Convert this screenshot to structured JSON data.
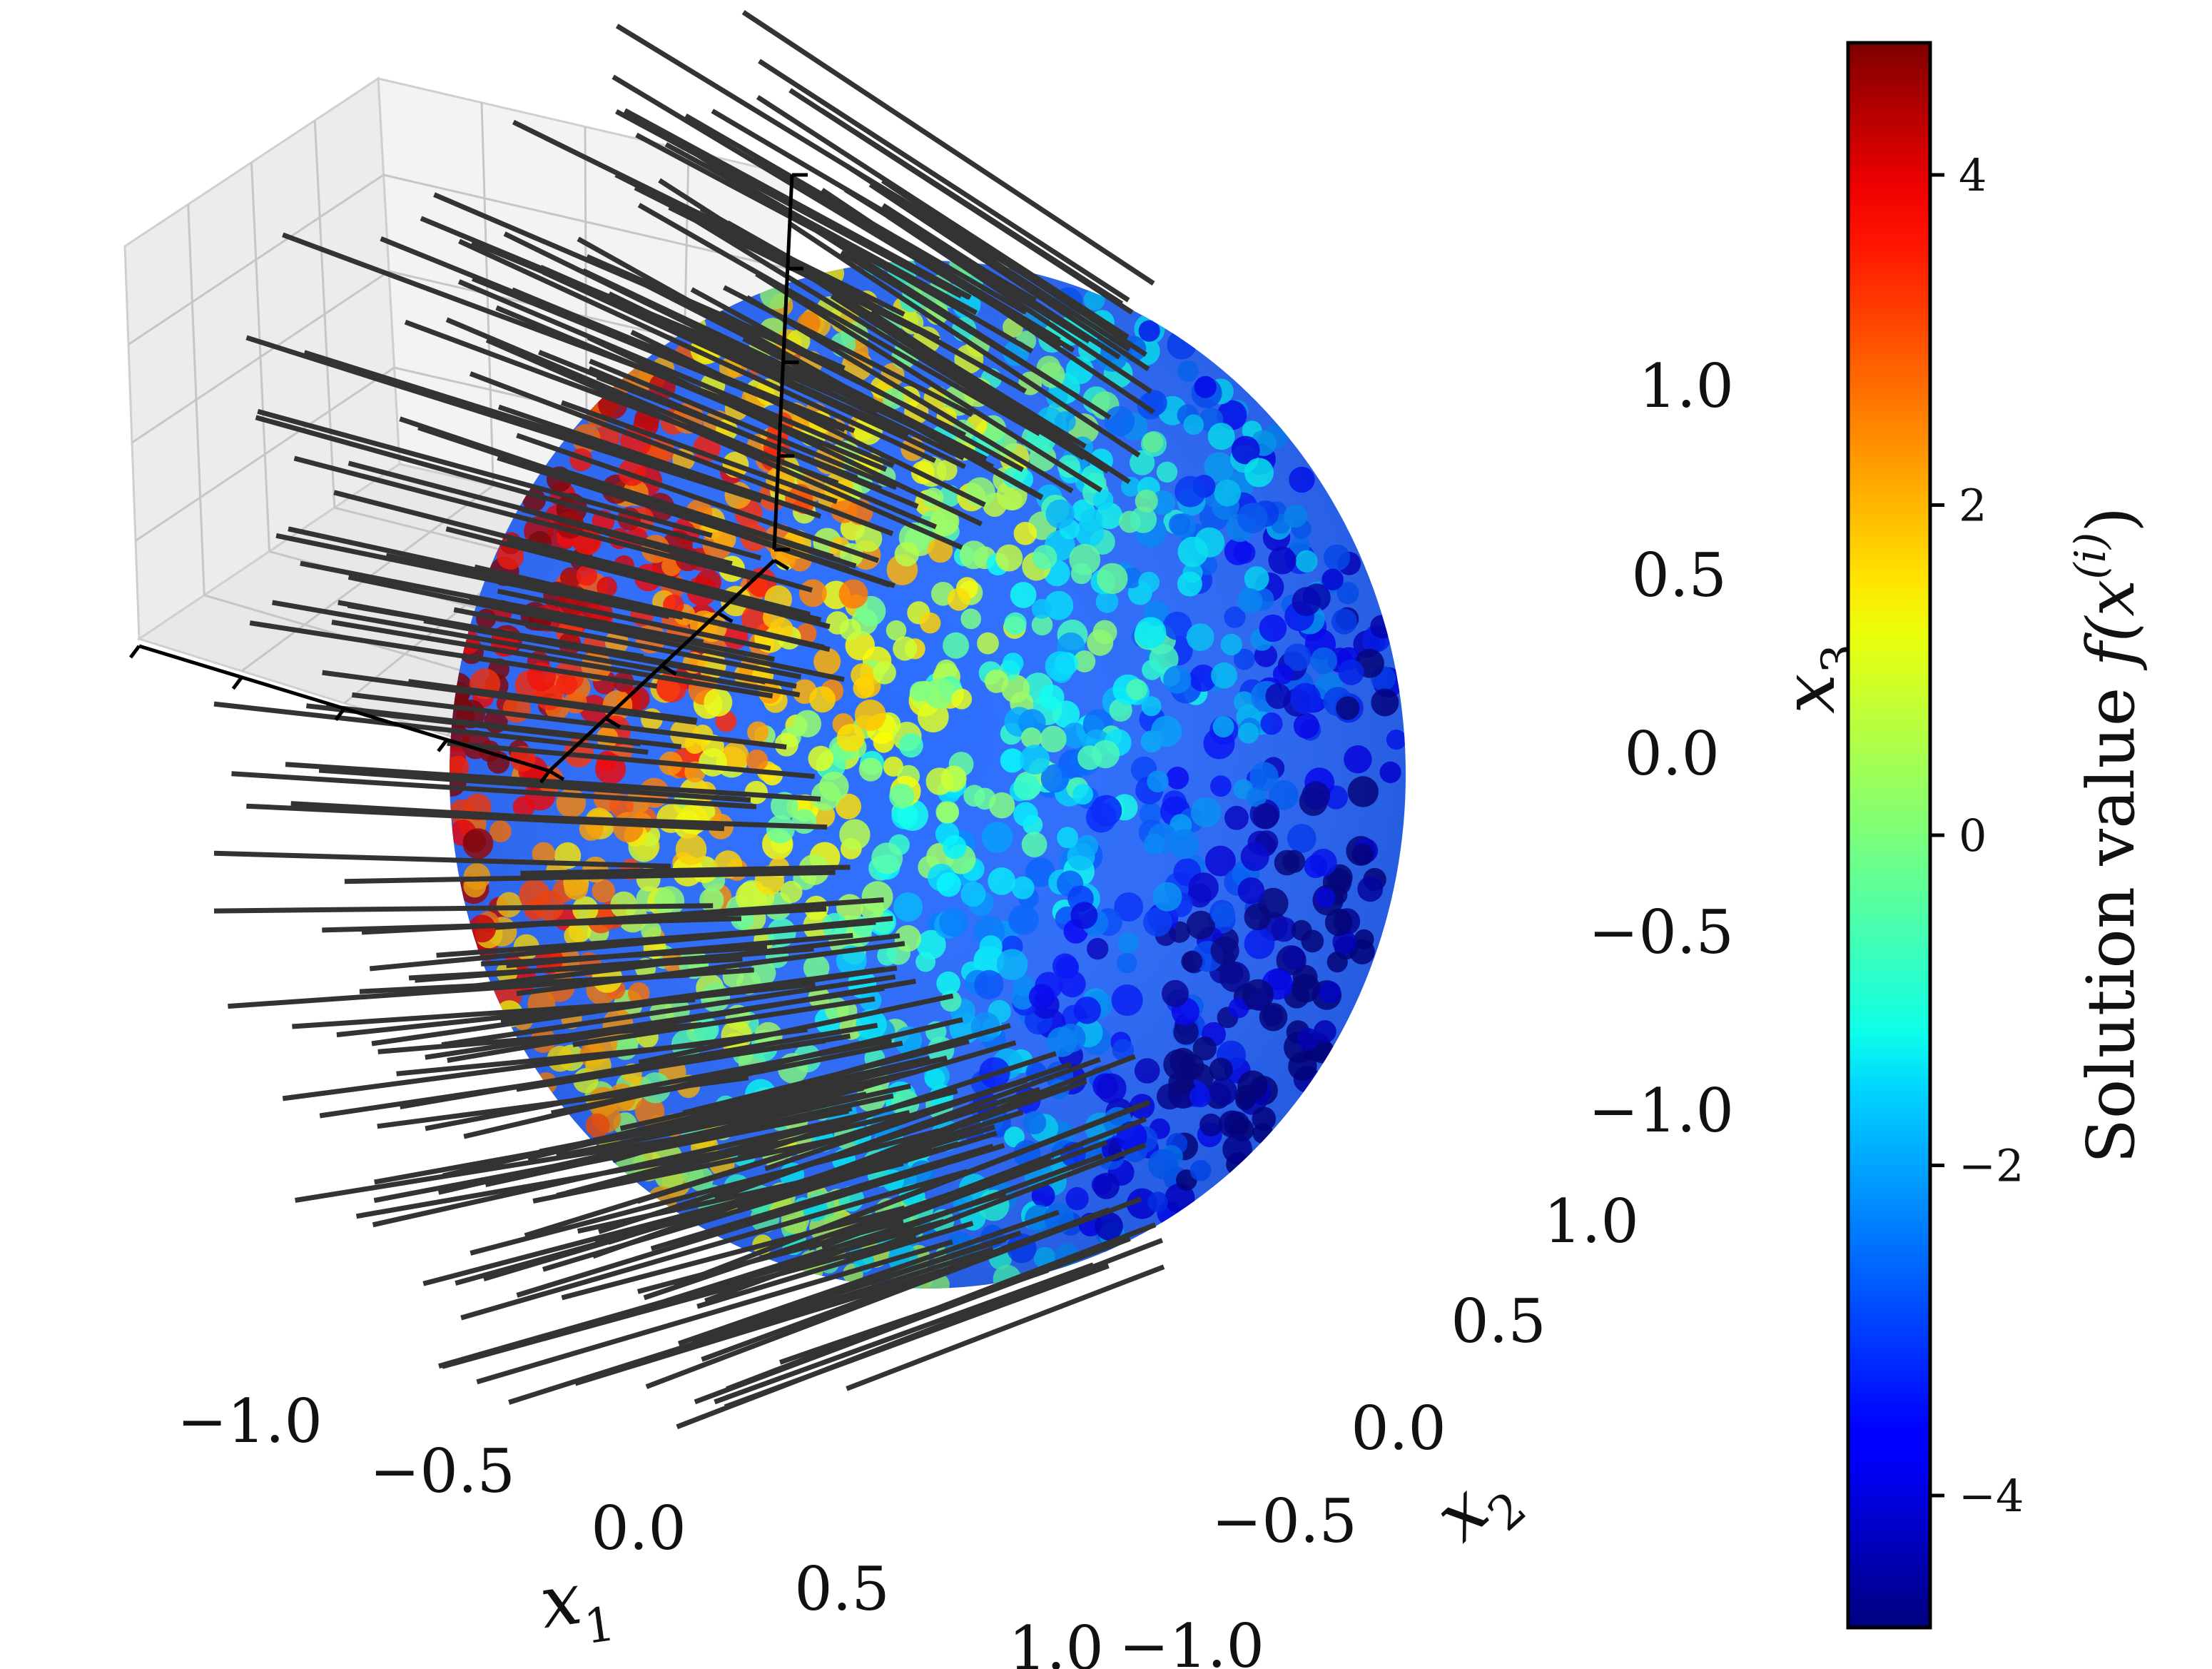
{
  "chart_data": {
    "type": "scatter",
    "projection": "3d",
    "colormap": "jet",
    "axes": {
      "x1": {
        "label": "x",
        "subscript": "1",
        "range": [
          -1.0,
          1.0
        ],
        "ticks": [
          "−1.0",
          "−0.5",
          "0.0",
          "0.5",
          "1.0"
        ]
      },
      "x2": {
        "label": "x",
        "subscript": "2",
        "range": [
          -1.0,
          1.0
        ],
        "ticks": [
          "−1.0",
          "−0.5",
          "0.0",
          "0.5",
          "1.0"
        ]
      },
      "x3": {
        "label": "x",
        "subscript": "3",
        "range": [
          -1.0,
          1.0
        ],
        "ticks": [
          "−1.0",
          "−0.5",
          "0.0",
          "0.5",
          "1.0"
        ]
      }
    },
    "colorbar": {
      "label_text": "Solution value ",
      "label_math": "f(x",
      "label_sup": "(i)",
      "label_close": ")",
      "range": [
        -4.8,
        4.8
      ],
      "ticks": [
        {
          "value": 4,
          "label": "4"
        },
        {
          "value": 2,
          "label": "2"
        },
        {
          "value": 0,
          "label": "0"
        },
        {
          "value": -2,
          "label": "−2"
        },
        {
          "value": -4,
          "label": "−4"
        }
      ]
    },
    "series": [
      {
        "kind": "points on unit sphere",
        "color_by": "solution value"
      },
      {
        "kind": "normal vectors",
        "color": "#333333"
      }
    ],
    "grid": true
  }
}
